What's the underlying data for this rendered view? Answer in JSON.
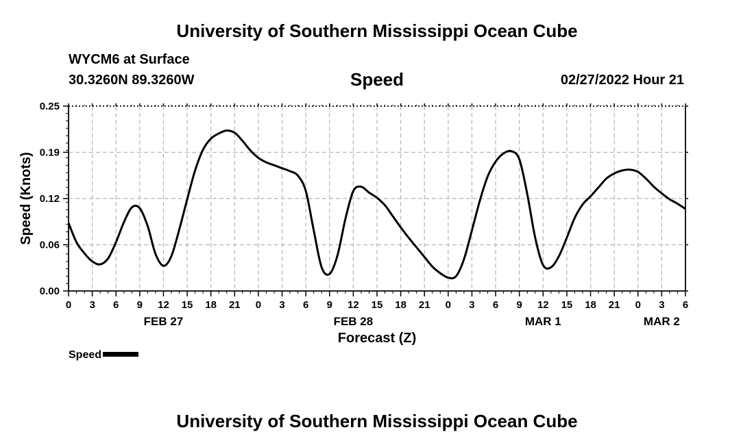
{
  "header": {
    "title": "University of Southern Mississippi Ocean Cube",
    "station": "WYCM6 at Surface",
    "coordinates": "30.3260N  89.3260W",
    "variable": "Speed",
    "datetime": "02/27/2022 Hour 21"
  },
  "footer": {
    "title": "University of Southern Mississippi Ocean Cube"
  },
  "legend": {
    "label": "Speed"
  },
  "colors": {
    "line": "#000000",
    "grid": "#b4b4b4"
  },
  "chart_data": {
    "type": "line",
    "title": "Speed",
    "xlabel": "Forecast (Z)",
    "ylabel": "Speed (Knots)",
    "ylim": [
      0,
      0.25
    ],
    "yticks": [
      "0.00",
      "0.06",
      "0.12",
      "0.19",
      "0.25"
    ],
    "ytick_values": [
      0,
      0.0625,
      0.125,
      0.1875,
      0.25
    ],
    "xlim": [
      0,
      78
    ],
    "x_unit": "forecast hours from 02/27/2022 00Z",
    "xticks": [
      "0",
      "3",
      "6",
      "9",
      "12",
      "15",
      "18",
      "21",
      "0",
      "3",
      "6",
      "9",
      "12",
      "15",
      "18",
      "21",
      "0",
      "3",
      "6",
      "9",
      "12",
      "15",
      "18",
      "21",
      "0",
      "3",
      "6"
    ],
    "date_labels": [
      {
        "label": "FEB 27",
        "x": 12
      },
      {
        "label": "FEB 28",
        "x": 36
      },
      {
        "label": "MAR 1",
        "x": 60
      },
      {
        "label": "MAR 2",
        "x": 75
      }
    ],
    "grid": true,
    "legend_position": "bottom-left",
    "series": [
      {
        "name": "Speed",
        "x": [
          0,
          1,
          2,
          3,
          4,
          5,
          6,
          7,
          8,
          9,
          10,
          11,
          12,
          13,
          14,
          15,
          16,
          17,
          18,
          19,
          20,
          21,
          22,
          23,
          24,
          25,
          26,
          27,
          28,
          29,
          30,
          31,
          32,
          33,
          34,
          35,
          36,
          37,
          38,
          39,
          40,
          41,
          42,
          43,
          44,
          45,
          46,
          47,
          48,
          49,
          50,
          51,
          52,
          53,
          54,
          55,
          56,
          57,
          58,
          59,
          60,
          61,
          62,
          63,
          64,
          65,
          66,
          67,
          68,
          69,
          70,
          71,
          72,
          73,
          74,
          75,
          76,
          77,
          78
        ],
        "values": [
          0.092,
          0.066,
          0.051,
          0.04,
          0.036,
          0.044,
          0.066,
          0.093,
          0.113,
          0.112,
          0.088,
          0.05,
          0.034,
          0.047,
          0.083,
          0.124,
          0.163,
          0.191,
          0.206,
          0.213,
          0.217,
          0.214,
          0.203,
          0.19,
          0.18,
          0.174,
          0.17,
          0.166,
          0.162,
          0.156,
          0.135,
          0.082,
          0.032,
          0.023,
          0.048,
          0.097,
          0.135,
          0.141,
          0.133,
          0.126,
          0.116,
          0.101,
          0.086,
          0.072,
          0.059,
          0.046,
          0.033,
          0.024,
          0.018,
          0.02,
          0.043,
          0.082,
          0.122,
          0.155,
          0.175,
          0.186,
          0.189,
          0.178,
          0.131,
          0.072,
          0.035,
          0.032,
          0.047,
          0.072,
          0.099,
          0.117,
          0.128,
          0.14,
          0.152,
          0.159,
          0.163,
          0.164,
          0.161,
          0.152,
          0.141,
          0.132,
          0.124,
          0.118,
          0.111
        ]
      }
    ]
  }
}
